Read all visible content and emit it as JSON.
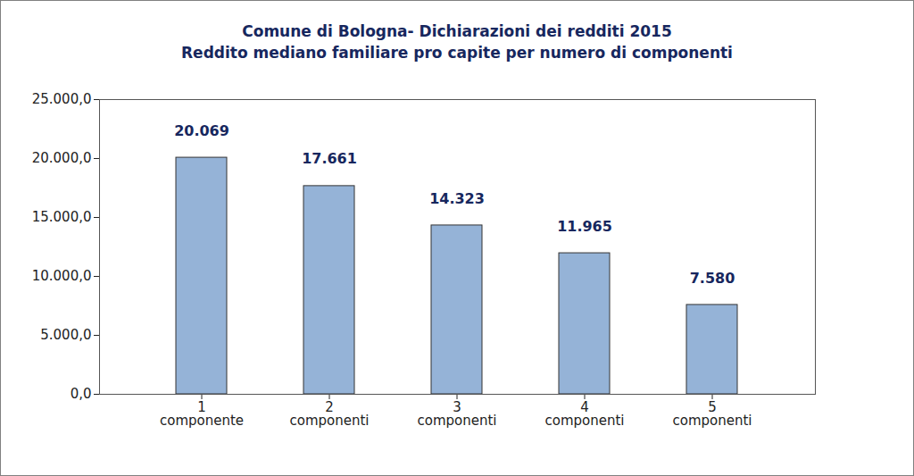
{
  "chart_data": {
    "type": "bar",
    "title": "Comune di Bologna- Dichiarazioni dei redditi 2015",
    "subtitle": "Reddito mediano familiare pro capite per numero di componenti",
    "categories": [
      "1 componente",
      "2 componenti",
      "3 componenti",
      "4 componenti",
      "5 componenti"
    ],
    "values": [
      20069,
      17661,
      14323,
      11965,
      7580
    ],
    "value_labels": [
      "20.069",
      "17.661",
      "14.323",
      "11.965",
      "7.580"
    ],
    "data_labels": true,
    "color": "#95b3d7",
    "ylim": [
      0,
      25000
    ],
    "yticks": [
      {
        "value": 0,
        "label": "0,0"
      },
      {
        "value": 5000,
        "label": "5.000,0"
      },
      {
        "value": 10000,
        "label": "10.000,0"
      },
      {
        "value": 15000,
        "label": "15.000,0"
      },
      {
        "value": 20000,
        "label": "20.000,0"
      },
      {
        "value": 25000,
        "label": "25.000,0"
      }
    ],
    "grid": false
  }
}
